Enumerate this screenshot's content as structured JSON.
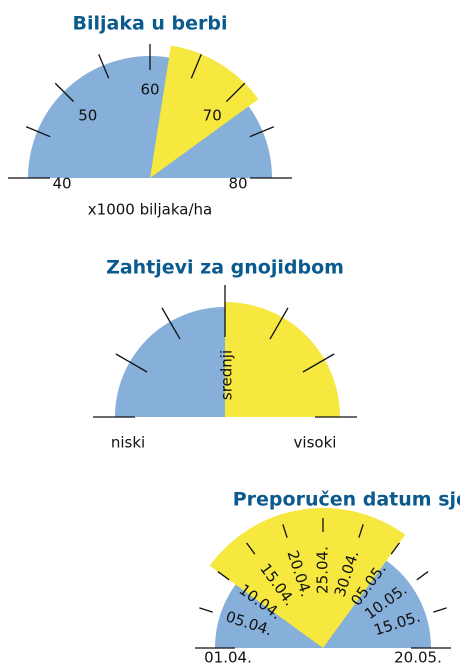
{
  "gauges": [
    {
      "title": "Biljaka u berbi",
      "range": [
        40,
        80
      ],
      "ticks": [
        40,
        50,
        60,
        70,
        80
      ],
      "highlight": [
        62,
        72
      ],
      "unit": "x1000 biljaka/ha"
    },
    {
      "title": "Zahtjevi za gnojidbom",
      "labels": [
        "niski",
        "srednji",
        "visoki"
      ]
    },
    {
      "title": "Preporučen datum sjetve",
      "labels": [
        "01.04.",
        "05.04.",
        "10.04.",
        "15.04.",
        "20.04.",
        "25.04.",
        "30.04.",
        "05.05.",
        "10.05.",
        "15.05.",
        "20.05."
      ],
      "highlight": [
        "10.04.",
        "05.05."
      ]
    }
  ]
}
